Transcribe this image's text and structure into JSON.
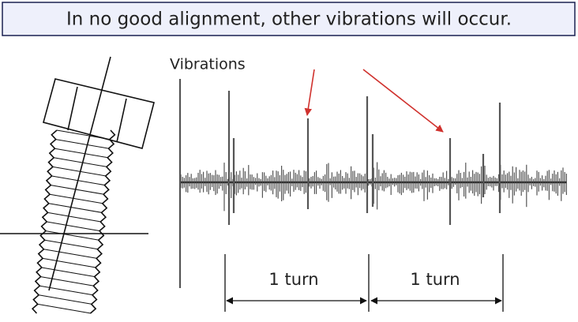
{
  "header": {
    "title": "In no good alignment, other vibrations will occur."
  },
  "graph": {
    "label": "Vibrations",
    "turns": [
      "1 turn",
      "1 turn"
    ]
  }
}
